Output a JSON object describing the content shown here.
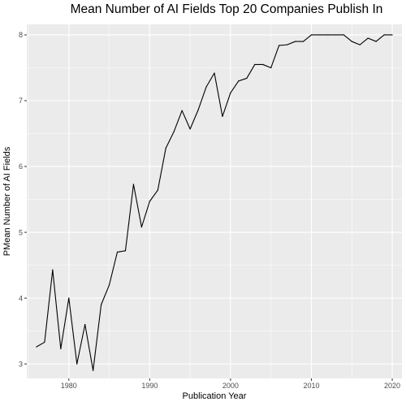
{
  "chart_data": {
    "type": "line",
    "title": "Mean Number of AI Fields Top 20 Companies Publish In",
    "xlabel": "Publication Year",
    "ylabel": "PMean Number of AI Fields",
    "xlim": [
      1974.8,
      2021.2
    ],
    "ylim": [
      2.78,
      8.16
    ],
    "x_ticks": [
      1980,
      1990,
      2000,
      2010,
      2020
    ],
    "x_tick_labels": [
      "1980",
      "1990",
      "2000",
      "2010",
      "2020"
    ],
    "y_ticks": [
      3,
      4,
      5,
      6,
      7,
      8
    ],
    "y_tick_labels": [
      "3",
      "4",
      "5",
      "6",
      "7",
      "8"
    ],
    "x_minor_ticks": [
      1975,
      1985,
      1995,
      2005,
      2015
    ],
    "y_minor_ticks": [
      3.5,
      4.5,
      5.5,
      6.5,
      7.5
    ],
    "grid": true,
    "colors": {
      "panel_background": "#ebebeb",
      "grid_major": "#ffffff",
      "line": "#000000",
      "tick_mark": "#333333"
    },
    "x": [
      1976,
      1977,
      1978,
      1979,
      1980,
      1981,
      1982,
      1983,
      1984,
      1985,
      1986,
      1987,
      1988,
      1989,
      1990,
      1991,
      1992,
      1993,
      1994,
      1995,
      1996,
      1997,
      1998,
      1999,
      2000,
      2001,
      2002,
      2003,
      2004,
      2005,
      2006,
      2007,
      2008,
      2009,
      2010,
      2011,
      2012,
      2013,
      2014,
      2015,
      2016,
      2017,
      2018,
      2019,
      2020
    ],
    "values": [
      3.26,
      3.33,
      4.43,
      3.23,
      4.0,
      3.0,
      3.6,
      2.9,
      3.9,
      4.2,
      4.7,
      4.72,
      5.73,
      5.08,
      5.47,
      5.64,
      6.28,
      6.53,
      6.85,
      6.57,
      6.86,
      7.21,
      7.42,
      6.76,
      7.12,
      7.3,
      7.34,
      7.55,
      7.55,
      7.5,
      7.84,
      7.85,
      7.9,
      7.9,
      8.0,
      8.0,
      8.0,
      8.0,
      8.0,
      7.9,
      7.85,
      7.95,
      7.9,
      8.0,
      8.0
    ]
  }
}
